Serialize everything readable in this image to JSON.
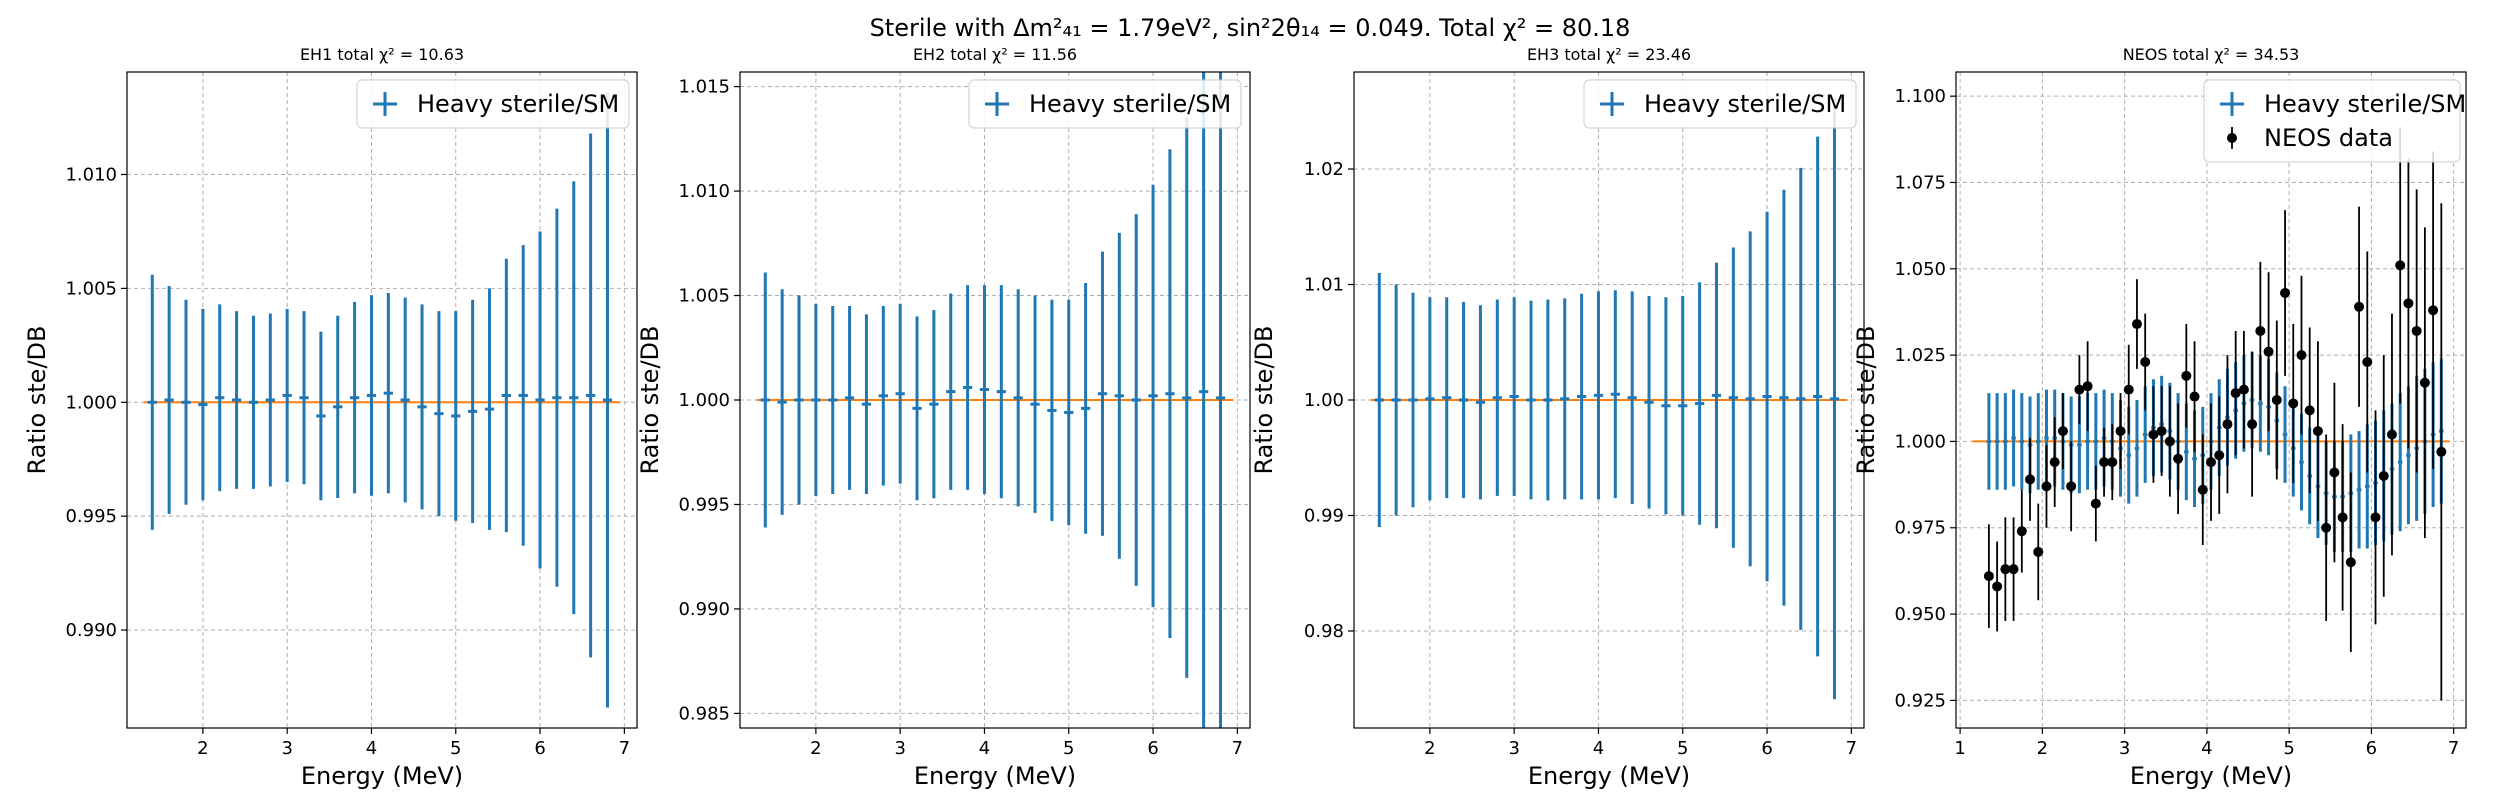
{
  "figure": {
    "suptitle": "Sterile with Δm²₄₁ = 1.79eV², sin²2θ₁₄ = 0.049. Total χ² = 80.18"
  },
  "colors": {
    "model": "#1f77b4",
    "unity": "#ff7f0e",
    "data": "#000000",
    "grid": "#b0b0b0"
  },
  "chart_data": [
    {
      "type": "scatter",
      "title": "EH1 total χ² = 10.63",
      "xlabel": "Energy (MeV)",
      "ylabel": "Ratio ste/DB",
      "xlim": [
        1.1,
        7.15
      ],
      "ylim": [
        0.9857,
        1.0145
      ],
      "xticks": [
        2,
        3,
        4,
        5,
        6,
        7
      ],
      "yticks": [
        0.99,
        0.995,
        1.0,
        1.005,
        1.01
      ],
      "ytick_labels": [
        "0.990",
        "0.995",
        "1.000",
        "1.005",
        "1.010"
      ],
      "grid": true,
      "legend_position": "upper right",
      "legend": [
        "Heavy sterile/SM"
      ],
      "series": [
        {
          "name": "Heavy sterile/SM",
          "x": [
            1.4,
            1.6,
            1.8,
            2.0,
            2.2,
            2.4,
            2.6,
            2.8,
            3.0,
            3.2,
            3.4,
            3.6,
            3.8,
            4.0,
            4.2,
            4.4,
            4.6,
            4.8,
            5.0,
            5.2,
            5.4,
            5.6,
            5.8,
            6.0,
            6.2,
            6.4,
            6.6,
            6.8
          ],
          "y": [
            1.0,
            1.0001,
            1.0,
            0.9999,
            1.0002,
            1.0001,
            1.0,
            1.0001,
            1.0003,
            1.0002,
            0.9994,
            0.9998,
            1.0002,
            1.0003,
            1.0004,
            1.0001,
            0.9998,
            0.9995,
            0.9994,
            0.9996,
            0.9997,
            1.0003,
            1.0003,
            1.0001,
            1.0002,
            1.0002,
            1.0003,
            1.0001
          ],
          "err": [
            0.0056,
            0.005,
            0.0045,
            0.0042,
            0.0041,
            0.0039,
            0.0038,
            0.0038,
            0.0038,
            0.0038,
            0.0037,
            0.004,
            0.0042,
            0.0044,
            0.0044,
            0.0045,
            0.0045,
            0.0045,
            0.0046,
            0.0049,
            0.0053,
            0.006,
            0.0066,
            0.0074,
            0.0083,
            0.0095,
            0.0115,
            0.0135
          ]
        }
      ],
      "reference_line": 1.0
    },
    {
      "type": "scatter",
      "title": "EH2 total χ² = 11.56",
      "xlabel": "Energy (MeV)",
      "ylabel": "Ratio ste/DB",
      "xlim": [
        1.1,
        7.15
      ],
      "ylim": [
        0.9843,
        1.0157
      ],
      "xticks": [
        2,
        3,
        4,
        5,
        6,
        7
      ],
      "yticks": [
        0.985,
        0.99,
        0.995,
        1.0,
        1.005,
        1.01,
        1.015
      ],
      "ytick_labels": [
        "0.985",
        "0.990",
        "0.995",
        "1.000",
        "1.005",
        "1.010",
        "1.015"
      ],
      "grid": true,
      "legend_position": "upper right",
      "legend": [
        "Heavy sterile/SM"
      ],
      "series": [
        {
          "name": "Heavy sterile/SM",
          "x": [
            1.4,
            1.6,
            1.8,
            2.0,
            2.2,
            2.4,
            2.6,
            2.8,
            3.0,
            3.2,
            3.4,
            3.6,
            3.8,
            4.0,
            4.2,
            4.4,
            4.6,
            4.8,
            5.0,
            5.2,
            5.4,
            5.6,
            5.8,
            6.0,
            6.2,
            6.4,
            6.6,
            6.8
          ],
          "y": [
            1.0,
            0.9999,
            1.0,
            1.0,
            1.0,
            1.0001,
            0.9998,
            1.0002,
            1.0003,
            0.9996,
            0.9998,
            1.0004,
            1.0006,
            1.0005,
            1.0004,
            1.0001,
            0.9998,
            0.9995,
            0.9994,
            0.9996,
            1.0003,
            1.0002,
            1.0,
            1.0002,
            1.0003,
            1.0001,
            1.0004,
            1.0001
          ],
          "err": [
            0.0061,
            0.0054,
            0.005,
            0.0046,
            0.0045,
            0.0044,
            0.0043,
            0.0043,
            0.0043,
            0.0044,
            0.0045,
            0.0047,
            0.0049,
            0.005,
            0.0051,
            0.0052,
            0.0052,
            0.0053,
            0.0054,
            0.006,
            0.0068,
            0.0078,
            0.0089,
            0.0101,
            0.0117,
            0.0134,
            0.0163,
            0.0188
          ]
        }
      ],
      "reference_line": 1.0
    },
    {
      "type": "scatter",
      "title": "EH3 total χ² = 23.46",
      "xlabel": "Energy (MeV)",
      "ylabel": "Ratio ste/DB",
      "xlim": [
        1.1,
        7.15
      ],
      "ylim": [
        0.9716,
        1.0284
      ],
      "xticks": [
        2,
        3,
        4,
        5,
        6,
        7
      ],
      "yticks": [
        0.98,
        0.99,
        1.0,
        1.01,
        1.02
      ],
      "ytick_labels": [
        "0.98",
        "0.99",
        "1.00",
        "1.01",
        "1.02"
      ],
      "grid": true,
      "legend_position": "upper right",
      "legend": [
        "Heavy sterile/SM"
      ],
      "series": [
        {
          "name": "Heavy sterile/SM",
          "x": [
            1.4,
            1.6,
            1.8,
            2.0,
            2.2,
            2.4,
            2.6,
            2.8,
            3.0,
            3.2,
            3.4,
            3.6,
            3.8,
            4.0,
            4.2,
            4.4,
            4.6,
            4.8,
            5.0,
            5.2,
            5.4,
            5.6,
            5.8,
            6.0,
            6.2,
            6.4,
            6.6,
            6.8
          ],
          "y": [
            1.0,
            1.0,
            1.0,
            1.0001,
            1.0002,
            1.0,
            0.9998,
            1.0002,
            1.0003,
            1.0,
            1.0,
            1.0001,
            1.0003,
            1.0004,
            1.0005,
            1.0002,
            0.9998,
            0.9995,
            0.9995,
            0.9997,
            1.0004,
            1.0002,
            1.0001,
            1.0003,
            1.0002,
            1.0001,
            1.0003,
            1.0001
          ],
          "err": [
            0.011,
            0.01,
            0.0093,
            0.0088,
            0.0087,
            0.0085,
            0.0084,
            0.0085,
            0.0086,
            0.0086,
            0.0087,
            0.0087,
            0.0089,
            0.009,
            0.009,
            0.0092,
            0.0092,
            0.0094,
            0.0095,
            0.0105,
            0.0115,
            0.013,
            0.0145,
            0.016,
            0.018,
            0.02,
            0.0225,
            0.026
          ]
        }
      ],
      "reference_line": 1.0
    },
    {
      "type": "scatter",
      "title": "NEOS total χ² = 34.53",
      "xlabel": "Energy (MeV)",
      "ylabel": "Ratio ste/DB",
      "xlim": [
        0.95,
        7.15
      ],
      "ylim": [
        0.917,
        1.107
      ],
      "xticks": [
        1,
        2,
        3,
        4,
        5,
        6,
        7
      ],
      "yticks": [
        0.925,
        0.95,
        0.975,
        1.0,
        1.025,
        1.05,
        1.075,
        1.1
      ],
      "ytick_labels": [
        "0.925",
        "0.950",
        "0.975",
        "1.000",
        "1.025",
        "1.050",
        "1.075",
        "1.100"
      ],
      "grid": true,
      "legend_position": "upper right",
      "legend": [
        "Heavy sterile/SM",
        "NEOS data"
      ],
      "series": [
        {
          "name": "Heavy sterile/SM",
          "x": [
            1.35,
            1.45,
            1.55,
            1.65,
            1.75,
            1.85,
            1.95,
            2.05,
            2.15,
            2.25,
            2.35,
            2.45,
            2.55,
            2.65,
            2.75,
            2.85,
            2.95,
            3.05,
            3.15,
            3.25,
            3.35,
            3.45,
            3.55,
            3.65,
            3.75,
            3.85,
            3.95,
            4.05,
            4.15,
            4.25,
            4.35,
            4.45,
            4.55,
            4.65,
            4.75,
            4.85,
            4.95,
            5.05,
            5.15,
            5.25,
            5.35,
            5.45,
            5.55,
            5.65,
            5.75,
            5.85,
            5.95,
            6.05,
            6.15,
            6.25,
            6.35,
            6.45,
            6.55,
            6.65,
            6.75,
            6.85
          ],
          "y": [
            1.0,
            1.0,
            1.0,
            1.001,
            1.0,
            0.999,
            1.0,
            1.001,
            1.001,
            1.0,
            0.999,
            0.999,
            1.0,
            1.0,
            1.001,
            1.0,
            0.998,
            0.996,
            0.998,
            1.002,
            1.004,
            1.005,
            1.003,
            1.0,
            0.997,
            0.995,
            0.996,
            1.0,
            1.004,
            1.007,
            1.009,
            1.011,
            1.012,
            1.011,
            1.01,
            1.006,
            1.002,
            0.998,
            0.994,
            0.99,
            0.987,
            0.985,
            0.984,
            0.984,
            0.985,
            0.986,
            0.987,
            0.988,
            0.99,
            0.992,
            0.994,
            0.996,
            0.998,
            1.0,
            1.002,
            1.003
          ],
          "err": [
            0.014,
            0.014,
            0.014,
            0.014,
            0.014,
            0.014,
            0.014,
            0.014,
            0.014,
            0.014,
            0.014,
            0.014,
            0.014,
            0.014,
            0.014,
            0.014,
            0.014,
            0.014,
            0.014,
            0.014,
            0.014,
            0.014,
            0.014,
            0.014,
            0.014,
            0.014,
            0.014,
            0.014,
            0.014,
            0.014,
            0.014,
            0.014,
            0.014,
            0.014,
            0.014,
            0.014,
            0.014,
            0.014,
            0.014,
            0.014,
            0.015,
            0.015,
            0.016,
            0.016,
            0.017,
            0.017,
            0.018,
            0.018,
            0.019,
            0.019,
            0.02,
            0.02,
            0.021,
            0.021,
            0.021,
            0.021
          ]
        },
        {
          "name": "NEOS data",
          "x": [
            1.35,
            1.45,
            1.55,
            1.65,
            1.75,
            1.85,
            1.95,
            2.05,
            2.15,
            2.25,
            2.35,
            2.45,
            2.55,
            2.65,
            2.75,
            2.85,
            2.95,
            3.05,
            3.15,
            3.25,
            3.35,
            3.45,
            3.55,
            3.65,
            3.75,
            3.85,
            3.95,
            4.05,
            4.15,
            4.25,
            4.35,
            4.45,
            4.55,
            4.65,
            4.75,
            4.85,
            4.95,
            5.05,
            5.15,
            5.25,
            5.35,
            5.45,
            5.55,
            5.65,
            5.75,
            5.85,
            5.95,
            6.05,
            6.15,
            6.25,
            6.35,
            6.45,
            6.55,
            6.65,
            6.75,
            6.85
          ],
          "y": [
            0.961,
            0.958,
            0.963,
            0.963,
            0.974,
            0.989,
            0.968,
            0.987,
            0.994,
            1.003,
            0.987,
            1.015,
            1.016,
            0.982,
            0.994,
            0.994,
            1.003,
            1.015,
            1.034,
            1.023,
            1.002,
            1.003,
            1.0,
            0.995,
            1.019,
            1.013,
            0.986,
            0.994,
            0.996,
            1.005,
            1.014,
            1.015,
            1.005,
            1.032,
            1.026,
            1.012,
            1.043,
            1.011,
            1.025,
            1.009,
            1.003,
            0.975,
            0.991,
            0.978,
            0.965,
            1.039,
            1.023,
            0.978,
            0.99,
            1.002,
            1.051,
            1.04,
            1.032,
            1.017,
            1.038,
            0.997
          ],
          "err": [
            0.015,
            0.013,
            0.015,
            0.015,
            0.012,
            0.012,
            0.014,
            0.012,
            0.013,
            0.011,
            0.013,
            0.01,
            0.013,
            0.011,
            0.01,
            0.011,
            0.011,
            0.013,
            0.013,
            0.014,
            0.014,
            0.013,
            0.016,
            0.016,
            0.015,
            0.016,
            0.016,
            0.017,
            0.017,
            0.02,
            0.018,
            0.017,
            0.021,
            0.02,
            0.023,
            0.023,
            0.024,
            0.023,
            0.023,
            0.024,
            0.026,
            0.027,
            0.026,
            0.027,
            0.026,
            0.029,
            0.032,
            0.031,
            0.035,
            0.035,
            0.04,
            0.042,
            0.041,
            0.045,
            0.046,
            0.072
          ]
        }
      ],
      "reference_line": 1.0
    }
  ]
}
